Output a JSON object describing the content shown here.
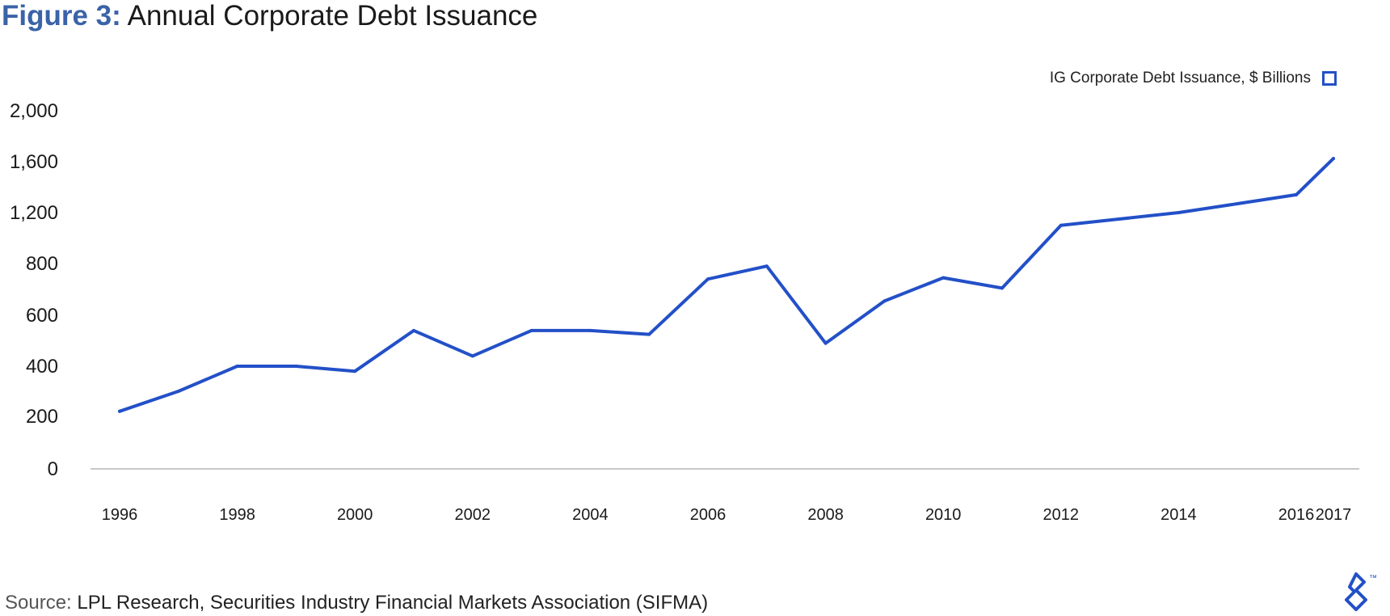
{
  "figure": {
    "title_lead": "Figure 3:",
    "title_text": "Annual Corporate Debt Issuance",
    "source_lead": "Source:",
    "source_text": "LPL Research, Securities Industry Financial Markets Association (SIFMA)"
  },
  "legend": {
    "label": "IG Corporate Debt Issuance, $ Billions",
    "position": "top-right"
  },
  "logo": {
    "icon": "toptal-logo-icon",
    "mark": "™"
  },
  "colors": {
    "series": "#2350c8",
    "title_accent": "#3a63a8",
    "axis": "#c8c8c8"
  },
  "chart_data": {
    "type": "line",
    "title": "Annual Corporate Debt Issuance",
    "grid": false,
    "ylim": [
      0,
      2000
    ],
    "y_ticks": [
      {
        "value": 0,
        "label": "0"
      },
      {
        "value": 200,
        "label": "200"
      },
      {
        "value": 400,
        "label": "400"
      },
      {
        "value": 600,
        "label": "600"
      },
      {
        "value": 800,
        "label": "800"
      },
      {
        "value": 1200,
        "label": "1,200"
      },
      {
        "value": 1600,
        "label": "1,600"
      },
      {
        "value": 2000,
        "label": "2,000"
      }
    ],
    "x_ticks": [
      "1996",
      "1998",
      "2000",
      "2002",
      "2004",
      "2006",
      "2008",
      "2010",
      "2012",
      "2014",
      "2016",
      "2017"
    ],
    "x": [
      1996,
      1997,
      1998,
      1999,
      2000,
      2001,
      2002,
      2003,
      2004,
      2005,
      2006,
      2007,
      2008,
      2009,
      2010,
      2011,
      2012,
      2013,
      2014,
      2015,
      2016,
      2017
    ],
    "series": [
      {
        "name": "IG Corporate Debt Issuance, $ Billions",
        "values": [
          220,
          300,
          400,
          400,
          380,
          540,
          440,
          540,
          540,
          525,
          740,
          790,
          490,
          655,
          745,
          705,
          1100,
          1150,
          1200,
          1270,
          1340,
          1625
        ]
      }
    ]
  }
}
